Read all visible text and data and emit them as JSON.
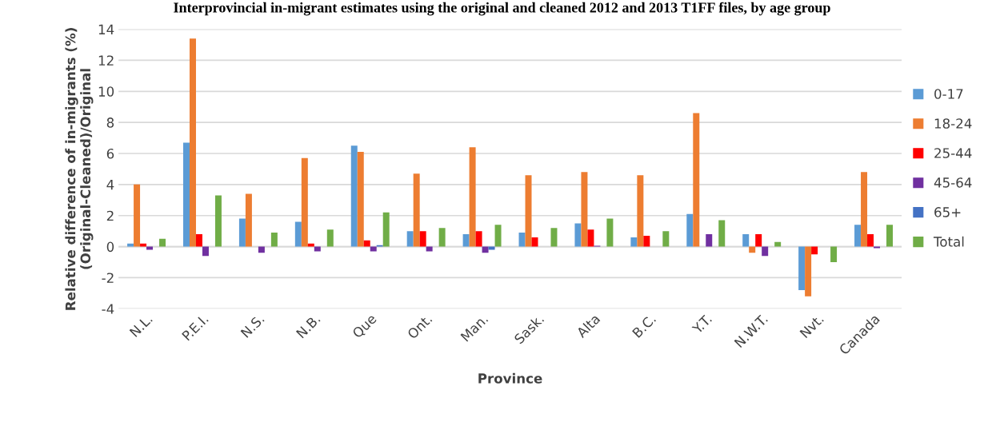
{
  "chart_data": {
    "type": "bar",
    "title": "Interprovincial in-migrant estimates using the original and cleaned 2012 and 2013 T1FF files, by age group",
    "xlabel": "Province",
    "ylabel": "Relative difference of in-migrants (%)\n(Original-Cleaned)/Original",
    "categories": [
      "N.L.",
      "P.E.I.",
      "N.S.",
      "N.B.",
      "Que",
      "Ont.",
      "Man.",
      "Sask.",
      "Alta",
      "B.C.",
      "Y.T.",
      "N.W.T.",
      "Nvt.",
      "Canada"
    ],
    "series": [
      {
        "name": "0-17",
        "color": "#5b9bd5",
        "values": [
          0.2,
          6.7,
          1.8,
          1.6,
          6.5,
          1.0,
          0.8,
          0.9,
          1.5,
          0.6,
          2.1,
          0.8,
          -2.8,
          1.4
        ]
      },
      {
        "name": "18-24",
        "color": "#ed7d31",
        "values": [
          4.0,
          13.4,
          3.4,
          5.7,
          6.1,
          4.7,
          6.4,
          4.6,
          4.8,
          4.6,
          8.6,
          -0.4,
          -3.2,
          4.8
        ]
      },
      {
        "name": "25-44",
        "color": "#ff0000",
        "values": [
          0.2,
          0.8,
          0,
          0.2,
          0.4,
          1.0,
          1.0,
          0.6,
          1.1,
          0.7,
          0,
          0.8,
          -0.5,
          0.8
        ]
      },
      {
        "name": "45-64",
        "color": "#7030a0",
        "values": [
          -0.2,
          -0.6,
          -0.4,
          -0.3,
          -0.3,
          -0.3,
          -0.4,
          0,
          0.05,
          0,
          0.8,
          -0.6,
          0,
          -0.1
        ]
      },
      {
        "name": "65+",
        "color": "#4472c4",
        "values": [
          0,
          0,
          0,
          0,
          0.1,
          0,
          -0.2,
          0,
          0,
          0,
          0,
          0,
          0,
          0
        ]
      },
      {
        "name": "Total",
        "color": "#70ad47",
        "values": [
          0.5,
          3.3,
          0.9,
          1.1,
          2.2,
          1.2,
          1.4,
          1.2,
          1.8,
          1.0,
          1.7,
          0.3,
          -1.0,
          1.4
        ]
      }
    ],
    "ylim": [
      -4,
      14
    ],
    "yticks": [
      -4,
      -2,
      0,
      2,
      4,
      6,
      8,
      10,
      12,
      14
    ],
    "grid": "y",
    "legend": "right"
  }
}
